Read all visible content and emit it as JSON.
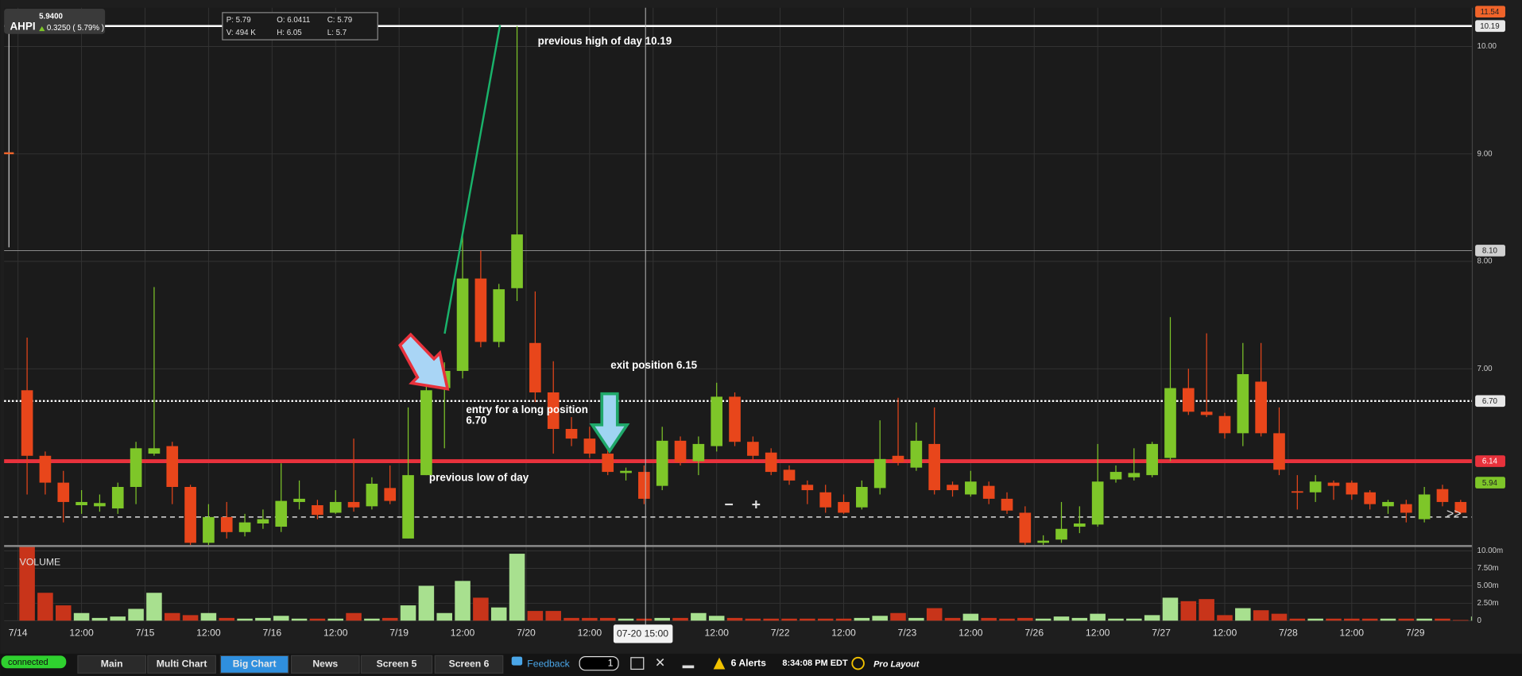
{
  "chart_data": [
    {
      "type": "candlestick",
      "up_color": "#7ec629",
      "down_color": "#e8461b",
      "open": [
        6.8,
        6.19,
        5.94,
        5.73,
        5.72,
        5.7,
        5.9,
        6.21,
        6.28,
        5.9,
        5.38,
        5.62,
        5.48,
        5.56,
        5.53,
        5.76,
        5.73,
        5.66,
        5.76,
        5.72,
        5.89,
        5.42,
        6.01,
        6.82,
        6.98,
        7.84,
        7.25,
        7.75,
        7.24,
        6.78,
        6.44,
        6.35,
        6.21,
        6.03,
        6.04,
        5.91,
        6.33,
        6.14,
        6.28,
        6.74,
        6.32,
        6.22,
        6.06,
        5.92,
        5.85,
        5.76,
        5.71,
        5.89,
        6.19,
        6.08,
        6.3,
        5.92,
        5.83,
        5.91,
        5.79,
        5.66,
        5.38,
        5.41,
        5.53,
        5.55,
        5.97,
        5.99,
        6.01,
        6.17,
        6.82,
        6.6,
        6.56,
        6.4,
        6.88,
        6.4,
        5.86,
        5.85,
        5.94,
        5.94,
        5.85,
        5.72,
        5.74,
        5.6,
        5.88,
        5.76,
        5.69
      ],
      "high": [
        7.29,
        6.23,
        6.05,
        5.87,
        5.83,
        5.94,
        6.32,
        7.76,
        6.32,
        5.92,
        5.74,
        5.76,
        5.65,
        5.69,
        6.12,
        5.96,
        5.78,
        5.87,
        6.35,
        5.99,
        6.1,
        6.64,
        6.87,
        7.06,
        8.25,
        8.1,
        7.79,
        10.19,
        7.72,
        7.07,
        6.55,
        6.46,
        6.3,
        6.08,
        6.1,
        6.46,
        6.37,
        6.37,
        6.87,
        6.78,
        6.37,
        6.26,
        6.1,
        5.96,
        5.92,
        5.83,
        5.96,
        6.52,
        6.73,
        6.5,
        6.64,
        5.95,
        6.05,
        5.95,
        5.85,
        5.72,
        5.45,
        5.76,
        5.72,
        6.3,
        6.1,
        6.26,
        6.32,
        7.48,
        7.0,
        7.33,
        6.59,
        7.24,
        7.24,
        6.64,
        6.01,
        6.01,
        5.96,
        5.96,
        5.87,
        5.78,
        5.78,
        5.9,
        5.92,
        5.78,
        5.85
      ],
      "low": [
        5.83,
        5.83,
        5.57,
        5.65,
        5.67,
        5.65,
        5.74,
        6.19,
        5.74,
        5.36,
        5.36,
        5.42,
        5.44,
        5.51,
        5.48,
        5.69,
        5.6,
        5.65,
        5.67,
        5.69,
        5.74,
        5.42,
        6.01,
        6.26,
        6.91,
        7.2,
        7.2,
        7.63,
        6.69,
        6.21,
        6.28,
        6.17,
        6.01,
        5.96,
        5.74,
        5.87,
        6.1,
        6.01,
        6.23,
        6.28,
        6.14,
        6.01,
        5.92,
        5.74,
        5.66,
        5.65,
        5.69,
        5.83,
        6.1,
        6.05,
        5.83,
        5.81,
        5.81,
        5.74,
        5.65,
        5.36,
        5.36,
        5.38,
        5.47,
        5.53,
        5.94,
        5.96,
        5.99,
        6.14,
        6.57,
        6.55,
        6.35,
        6.28,
        6.37,
        6.01,
        5.69,
        5.76,
        5.78,
        5.78,
        5.69,
        5.65,
        5.57,
        5.57,
        5.72,
        5.65,
        5.66
      ],
      "close": [
        6.19,
        5.94,
        5.76,
        5.76,
        5.75,
        5.9,
        6.26,
        6.26,
        5.9,
        5.38,
        5.62,
        5.48,
        5.57,
        5.6,
        5.77,
        5.79,
        5.64,
        5.76,
        5.71,
        5.93,
        5.77,
        6.01,
        6.8,
        6.98,
        7.84,
        7.25,
        7.74,
        8.25,
        6.78,
        6.44,
        6.35,
        6.21,
        6.04,
        6.05,
        5.79,
        6.33,
        6.13,
        6.3,
        6.74,
        6.32,
        6.19,
        6.04,
        5.96,
        5.87,
        5.71,
        5.66,
        5.9,
        6.16,
        6.13,
        6.33,
        5.87,
        5.87,
        5.95,
        5.79,
        5.68,
        5.38,
        5.4,
        5.51,
        5.56,
        5.95,
        6.04,
        6.03,
        6.3,
        6.82,
        6.6,
        6.57,
        6.4,
        6.95,
        6.4,
        6.06,
        5.85,
        5.95,
        5.91,
        5.83,
        5.74,
        5.76,
        5.66,
        5.83,
        5.76,
        5.66,
        5.82
      ],
      "ylim": [
        5.35,
        10.36
      ],
      "yticks": [
        {
          "value": 10,
          "label": "10.00"
        },
        {
          "value": 9,
          "label": "9.00"
        },
        {
          "value": 8,
          "label": "8.00"
        },
        {
          "value": 7,
          "label": "7.00"
        }
      ],
      "xtick_labels": [
        "7/14",
        "12:00",
        "7/15",
        "12:00",
        "7/16",
        "12:00",
        "7/19",
        "12:00",
        "7/20",
        "12:00",
        null,
        "12:00",
        "7/22",
        "12:00",
        "7/23",
        "12:00",
        "7/26",
        "12:00",
        "7/27",
        "12:00",
        "7/28",
        "12:00",
        "7/29"
      ],
      "grid": true,
      "levels": [
        {
          "value": 10.19,
          "label": "10.19",
          "line": "solid",
          "color": "#ffffff",
          "tag_color": "#e8e8e8"
        },
        {
          "value": 8.1,
          "label": "8.10",
          "line": "thin",
          "color": "#9a9a9a",
          "tag_color": "#d0d0d0"
        },
        {
          "value": 6.7,
          "label": "6.70",
          "line": "dotted",
          "color": "#ffffff",
          "tag_color": "#e8e8e8"
        },
        {
          "value": 6.14,
          "label": "6.14",
          "line": "thick",
          "color": "#e8323c",
          "tag_color": "#e8323c"
        },
        {
          "value": 5.94,
          "label": "5.94",
          "line": "none",
          "color": "#7ec629",
          "tag_color": "#7ec629"
        },
        {
          "value": 5.62,
          "line": "dashed",
          "color": "#dddddd"
        }
      ]
    },
    {
      "type": "bar",
      "title": "VOLUME",
      "up_color": "#a8e08f",
      "down_color": "#c8341a",
      "values": [
        10700000,
        4000000,
        2200000,
        1100000,
        400000,
        600000,
        1700000,
        4000000,
        1100000,
        800000,
        1100000,
        400000,
        300000,
        400000,
        700000,
        300000,
        300000,
        300000,
        1100000,
        300000,
        400000,
        2200000,
        5000000,
        1100000,
        5700000,
        3300000,
        1900000,
        9600000,
        1400000,
        1400000,
        400000,
        400000,
        400000,
        300000,
        300000,
        400000,
        400000,
        1100000,
        700000,
        400000,
        300000,
        300000,
        300000,
        300000,
        300000,
        300000,
        400000,
        700000,
        1100000,
        400000,
        1800000,
        400000,
        1000000,
        400000,
        300000,
        400000,
        300000,
        600000,
        400000,
        1000000,
        300000,
        300000,
        800000,
        3300000,
        2800000,
        3100000,
        800000,
        1800000,
        1500000,
        1000000,
        300000,
        300000,
        300000,
        300000,
        300000,
        300000,
        300000,
        300000,
        300000,
        100000,
        600000
      ],
      "ylim": [
        0,
        10700000
      ],
      "yticks": [
        {
          "value": 10000000,
          "label": "10.00m"
        },
        {
          "value": 7500000,
          "label": "7.50m"
        },
        {
          "value": 5000000,
          "label": "5.00m"
        },
        {
          "value": 2500000,
          "label": "2.50m"
        },
        0
      ]
    }
  ],
  "header": {
    "symbol": "AHPI",
    "last": "5.9400",
    "change": "0.3250 ( 5.79% )"
  },
  "ohlc_box": [
    "P: 5.79",
    "O: 6.0411",
    "C: 5.79",
    "V: 494 K",
    "H: 6.05",
    "L: 5.7"
  ],
  "top_tag": "11.54",
  "crosshair_time": "07-20 15:00",
  "annotations": {
    "high": "previous high of day 10.19",
    "exit": "exit position 6.15",
    "entry": "entry for a long position",
    "entry_price": "6.70",
    "low": "previous low of day"
  },
  "controls": {
    "zoom_out": "−",
    "zoom_in": "+",
    "scroll": ">>"
  },
  "tabs": [
    "Main",
    "Multi Chart",
    "Big Chart",
    "News",
    "Screen 5",
    "Screen 6"
  ],
  "active_tab": 2,
  "status": {
    "connection": "connected",
    "feedback": "Feedback",
    "layouts": "1",
    "alerts": "6 Alerts",
    "time": "8:34:08 PM EDT",
    "layout": "Pro Layout"
  }
}
